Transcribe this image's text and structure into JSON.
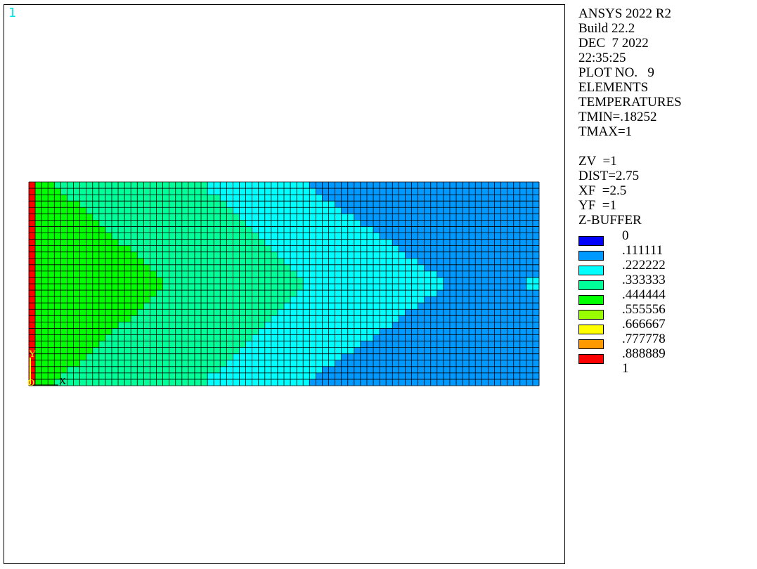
{
  "window_number": "1",
  "info_lines": [
    "ANSYS 2022 R2",
    "Build 22.2",
    "DEC  7 2022",
    "22:35:25",
    "PLOT NO.   9",
    "ELEMENTS",
    "TEMPERATURES",
    "TMIN=.18252",
    "TMAX=1",
    "",
    "ZV  =1",
    "DIST=2.75",
    "XF  =2.5",
    "YF  =1",
    "Z-BUFFER"
  ],
  "legend": [
    {
      "label": "0",
      "color": "#0000ff"
    },
    {
      "label": ".111111",
      "color": "#0099ff"
    },
    {
      "label": ".222222",
      "color": "#00ffff"
    },
    {
      "label": ".333333",
      "color": "#00ff99"
    },
    {
      "label": ".444444",
      "color": "#00ff00"
    },
    {
      "label": ".555556",
      "color": "#99ff00"
    },
    {
      "label": ".666667",
      "color": "#ffff00"
    },
    {
      "label": ".777778",
      "color": "#ff9900"
    },
    {
      "label": ".888889",
      "color": "#ff0000"
    },
    {
      "label": "1",
      "color": null
    }
  ],
  "triad": {
    "x_label": "X",
    "y_label": "Y",
    "origin_label": "O",
    "x_color": "#000000",
    "y_color": "#ffff00"
  },
  "mesh": {
    "columns": 80,
    "rows": 32,
    "line_color": "#000000",
    "colors": {
      "red": "#ff0000",
      "green": "#00ff00",
      "teal": "#00ff99",
      "cyan": "#00ffff",
      "blue": "#0099ff"
    }
  }
}
